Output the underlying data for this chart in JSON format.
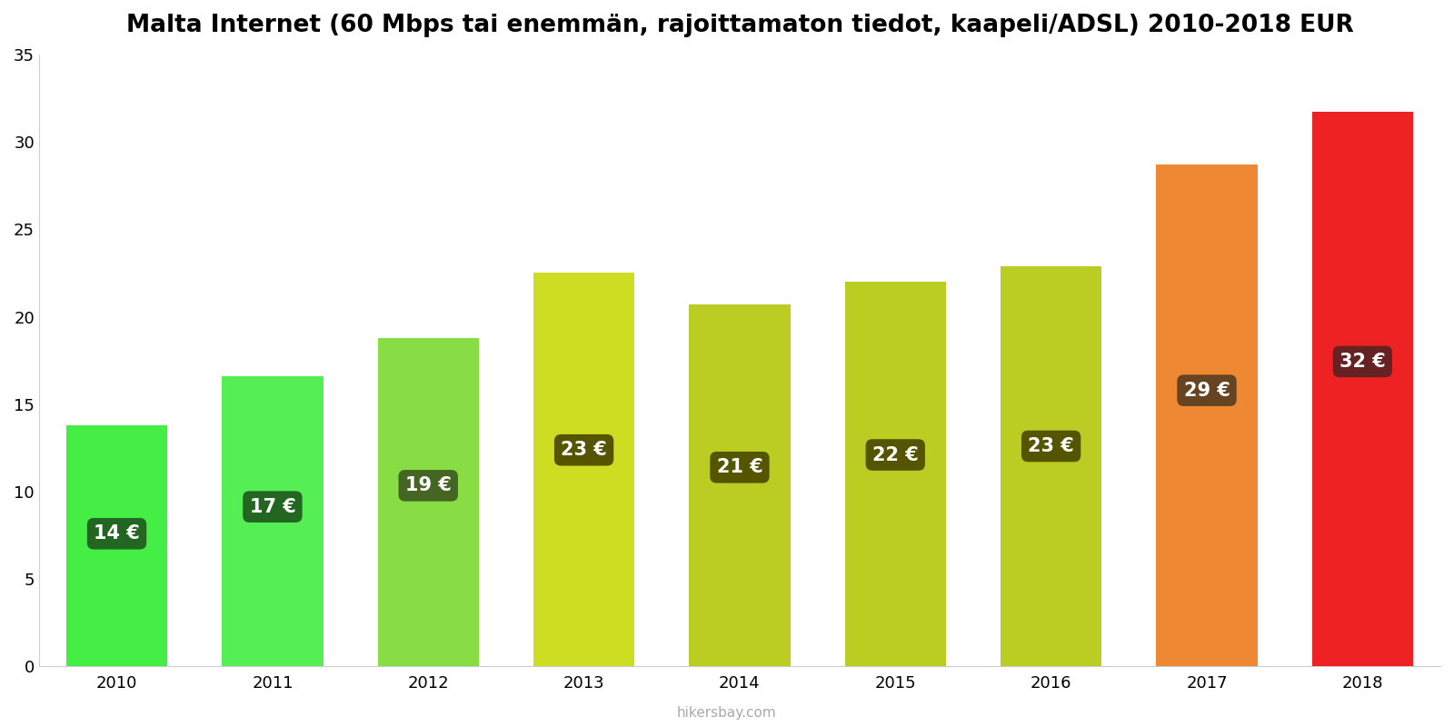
{
  "title": "Malta Internet (60 Mbps tai enemmän, rajoittamaton tiedot, kaapeli/ADSL) 2010-2018 EUR",
  "years": [
    2010,
    2011,
    2012,
    2013,
    2014,
    2015,
    2016,
    2017,
    2018
  ],
  "values": [
    13.8,
    16.6,
    18.8,
    22.5,
    20.7,
    22.0,
    22.9,
    28.7,
    31.7
  ],
  "labels": [
    "14 €",
    "17 €",
    "19 €",
    "23 €",
    "21 €",
    "22 €",
    "23 €",
    "29 €",
    "32 €"
  ],
  "bar_colors": [
    "#44ee44",
    "#55ee55",
    "#88dd44",
    "#ccdd22",
    "#bbcc22",
    "#bbcc22",
    "#bbcc22",
    "#ee8833",
    "#ee2222"
  ],
  "label_box_colors": [
    "#226622",
    "#226622",
    "#446622",
    "#555500",
    "#555500",
    "#555500",
    "#555500",
    "#664422",
    "#662222"
  ],
  "label_text_color": "#ffffff",
  "ylim": [
    0,
    35
  ],
  "yticks": [
    0,
    5,
    10,
    15,
    20,
    25,
    30,
    35
  ],
  "background_color": "#ffffff",
  "watermark": "hikersbay.com",
  "title_fontsize": 19,
  "label_fontsize": 15,
  "bar_width": 0.65
}
